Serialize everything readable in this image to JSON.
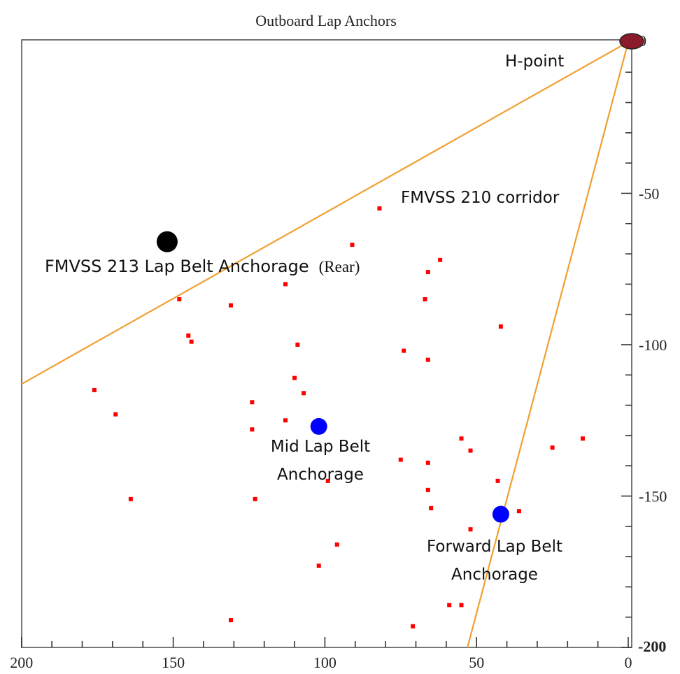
{
  "chart_data": {
    "type": "scatter",
    "title": "Outboard Lap Anchors",
    "xlabel": "",
    "ylabel": "",
    "xlim": [
      200,
      0
    ],
    "ylim": [
      -200,
      0
    ],
    "x_ticks": [
      "200",
      "150",
      "100",
      "50",
      "0"
    ],
    "y_ticks": [
      "0",
      "-50",
      "-100",
      "-150"
    ],
    "y_corner_tick_label": "-200",
    "grid": false,
    "colors": {
      "points": "#ff0000",
      "anchor_blue": "#0000ff",
      "anchor_black": "#000000",
      "h_point": "#8b1a2a",
      "corridor": "#f0a030"
    },
    "points": [
      {
        "x": 82,
        "y": -55
      },
      {
        "x": 91,
        "y": -67
      },
      {
        "x": 62,
        "y": -72
      },
      {
        "x": 66,
        "y": -76
      },
      {
        "x": 113,
        "y": -80
      },
      {
        "x": 148,
        "y": -85
      },
      {
        "x": 131,
        "y": -87
      },
      {
        "x": 67,
        "y": -85
      },
      {
        "x": 42,
        "y": -94
      },
      {
        "x": 145,
        "y": -97
      },
      {
        "x": 144,
        "y": -99
      },
      {
        "x": 109,
        "y": -100
      },
      {
        "x": 74,
        "y": -102
      },
      {
        "x": 66,
        "y": -105
      },
      {
        "x": 110,
        "y": -111
      },
      {
        "x": 176,
        "y": -115
      },
      {
        "x": 107,
        "y": -116
      },
      {
        "x": 124,
        "y": -119
      },
      {
        "x": 169,
        "y": -123
      },
      {
        "x": 113,
        "y": -125
      },
      {
        "x": 124,
        "y": -128
      },
      {
        "x": 55,
        "y": -131
      },
      {
        "x": 15,
        "y": -131
      },
      {
        "x": 25,
        "y": -134
      },
      {
        "x": 52,
        "y": -135
      },
      {
        "x": 75,
        "y": -138
      },
      {
        "x": 66,
        "y": -139
      },
      {
        "x": 99,
        "y": -145
      },
      {
        "x": 43,
        "y": -145
      },
      {
        "x": 66,
        "y": -148
      },
      {
        "x": 164,
        "y": -151
      },
      {
        "x": 123,
        "y": -151
      },
      {
        "x": 65,
        "y": -154
      },
      {
        "x": 36,
        "y": -155
      },
      {
        "x": 44,
        "y": -156
      },
      {
        "x": 52,
        "y": -161
      },
      {
        "x": 96,
        "y": -166
      },
      {
        "x": 102,
        "y": -173
      },
      {
        "x": 59,
        "y": -186
      },
      {
        "x": 55,
        "y": -186
      },
      {
        "x": 131,
        "y": -191
      },
      {
        "x": 71,
        "y": -193
      }
    ],
    "h_point": {
      "x": 0,
      "y": 0,
      "label": "H-point"
    },
    "corridor": {
      "label": "FMVSS 210 corridor",
      "lines": [
        {
          "x1": 0,
          "y1": 0,
          "x2": 200,
          "y2": -113
        },
        {
          "x1": 0,
          "y1": 0,
          "x2": 53,
          "y2": -200
        }
      ]
    },
    "annotations": {
      "fmvss213": {
        "x": 152,
        "y": -66,
        "label_main": "FMVSS 213 Lap Belt Anchorage",
        "label_suffix": "(Rear)"
      },
      "mid": {
        "x": 102,
        "y": -127,
        "line1": "Mid Lap Belt",
        "line2": "Anchorage"
      },
      "forward": {
        "x": 42,
        "y": -156,
        "line1": "Forward Lap Belt",
        "line2": "Anchorage"
      }
    }
  }
}
